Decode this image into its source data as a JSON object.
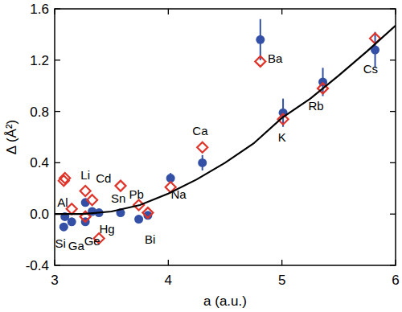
{
  "chart_data": {
    "type": "scatter",
    "xlabel": "a (a.u.)",
    "ylabel": "Δ (Å²)",
    "xlim": [
      3,
      6
    ],
    "ylim": [
      -0.4,
      1.6
    ],
    "xticks": [
      3,
      4,
      5,
      6
    ],
    "yticks": [
      -0.4,
      {
        "value": 0,
        "label": "0.0"
      },
      0.4,
      0.8,
      1.2,
      1.6
    ],
    "series": [
      {
        "type": "scatter",
        "marker": "circle",
        "color": "#3350a6",
        "x": [
          3.09,
          3.08,
          3.15,
          3.27,
          3.27,
          3.33,
          3.39,
          3.58,
          3.74,
          3.82,
          4.02,
          4.3,
          4.81,
          5.01,
          5.36,
          5.82
        ],
        "values": [
          -0.02,
          -0.1,
          -0.06,
          0.09,
          -0.06,
          0.02,
          0.01,
          0.01,
          -0.04,
          -0.01,
          0.28,
          0.4,
          1.36,
          0.79,
          1.03,
          1.28
        ],
        "errors": [
          null,
          null,
          null,
          null,
          null,
          null,
          null,
          null,
          null,
          null,
          0.04,
          0.06,
          0.16,
          0.11,
          0.11,
          0.14
        ]
      },
      {
        "type": "scatter",
        "marker": "diamond",
        "color": "#e0342a",
        "x": [
          3.09,
          3.08,
          3.15,
          3.27,
          3.27,
          3.33,
          3.39,
          3.58,
          3.74,
          3.82,
          4.02,
          4.3,
          4.81,
          5.01,
          5.36,
          5.82
        ],
        "values": [
          0.28,
          0.26,
          0.04,
          0.18,
          -0.02,
          0.11,
          -0.19,
          0.22,
          0.07,
          0.01,
          0.21,
          0.52,
          1.19,
          0.74,
          0.98,
          1.37
        ]
      },
      {
        "type": "line",
        "line_style": "solid",
        "color": "#000000",
        "x": [
          3,
          3.25,
          3.5,
          3.75,
          4,
          4.25,
          4.5,
          4.75,
          5,
          5.25,
          5.5,
          5.75,
          6
        ],
        "values": [
          0,
          0,
          0.02,
          0.07,
          0.16,
          0.27,
          0.4,
          0.55,
          0.75,
          0.9,
          1.08,
          1.27,
          1.47
        ]
      }
    ],
    "annotations": [
      {
        "text": "Al",
        "x": 3.07,
        "y": 0.09
      },
      {
        "text": "Si",
        "x": 3.05,
        "y": -0.23
      },
      {
        "text": "Ga",
        "x": 3.19,
        "y": -0.25
      },
      {
        "text": "Li",
        "x": 3.27,
        "y": 0.3
      },
      {
        "text": "Ge",
        "x": 3.33,
        "y": -0.21
      },
      {
        "text": "Cd",
        "x": 3.43,
        "y": 0.28
      },
      {
        "text": "Hg",
        "x": 3.46,
        "y": -0.12
      },
      {
        "text": "Sn",
        "x": 3.56,
        "y": 0.12
      },
      {
        "text": "Pb",
        "x": 3.72,
        "y": 0.15
      },
      {
        "text": "Bi",
        "x": 3.84,
        "y": -0.2
      },
      {
        "text": "Na",
        "x": 4.09,
        "y": 0.15
      },
      {
        "text": "Ca",
        "x": 4.28,
        "y": 0.65
      },
      {
        "text": "Ba",
        "x": 4.94,
        "y": 1.21
      },
      {
        "text": "K",
        "x": 5.0,
        "y": 0.6
      },
      {
        "text": "Rb",
        "x": 5.3,
        "y": 0.84
      },
      {
        "text": "Cs",
        "x": 5.78,
        "y": 1.13
      }
    ]
  }
}
